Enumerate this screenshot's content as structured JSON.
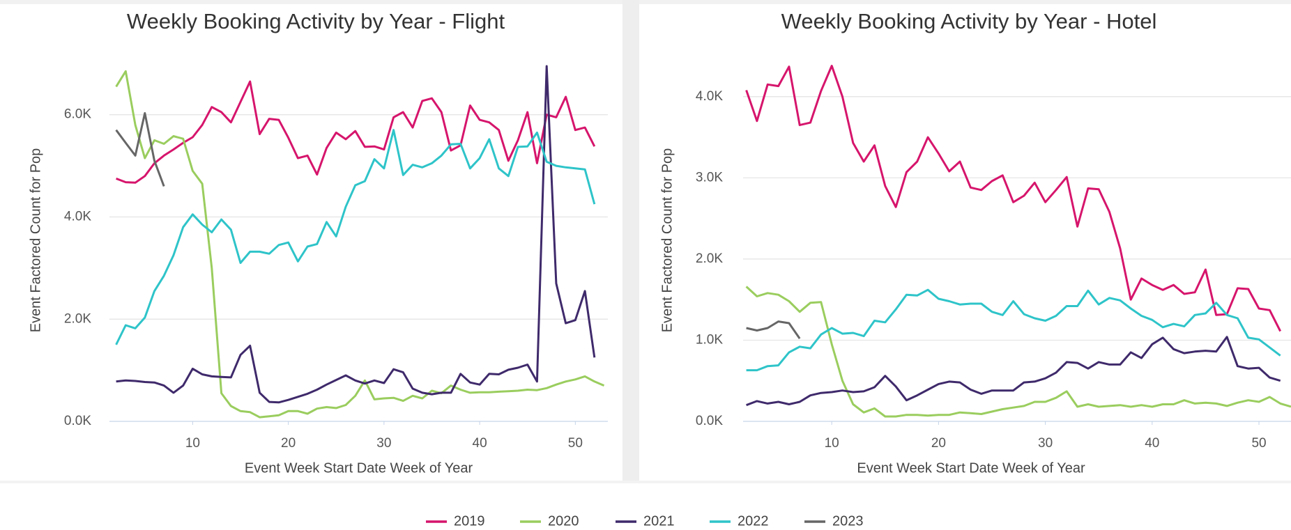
{
  "chart_data": [
    {
      "type": "line",
      "title": "Weekly Booking Activity by Year - Flight",
      "xlabel": "Event Week Start Date Week of Year",
      "ylabel": "Event Factored Count for Pop",
      "x": [
        2,
        3,
        4,
        5,
        6,
        7,
        8,
        9,
        10,
        11,
        12,
        13,
        14,
        15,
        16,
        17,
        18,
        19,
        20,
        21,
        22,
        23,
        24,
        25,
        26,
        27,
        28,
        29,
        30,
        31,
        32,
        33,
        34,
        35,
        36,
        37,
        38,
        39,
        40,
        41,
        42,
        43,
        44,
        45,
        46,
        47,
        48,
        49,
        50,
        51,
        52,
        53
      ],
      "xlim": [
        1.3,
        53.4
      ],
      "xticks": [
        10,
        20,
        30,
        40,
        50
      ],
      "ylim": [
        0,
        7100
      ],
      "yticks": [
        {
          "value": 0,
          "label": "0.0K"
        },
        {
          "value": 2000,
          "label": "2.0K"
        },
        {
          "value": 4000,
          "label": "4.0K"
        },
        {
          "value": 6000,
          "label": "6.0K"
        }
      ],
      "grid": true,
      "series": [
        {
          "name": "2019",
          "color": "#d6156c",
          "values": [
            4750,
            4680,
            4670,
            4800,
            5050,
            5200,
            5320,
            5450,
            5560,
            5800,
            6150,
            6050,
            5850,
            6250,
            6650,
            5620,
            5920,
            5900,
            5550,
            5150,
            5200,
            4830,
            5350,
            5650,
            5520,
            5680,
            5370,
            5380,
            5320,
            5950,
            6050,
            5750,
            6270,
            6320,
            6050,
            5300,
            5400,
            6180,
            5900,
            5850,
            5700,
            5100,
            5500,
            6050,
            5050,
            6000,
            5950,
            6350,
            5700,
            5750,
            5380,
            null
          ]
        },
        {
          "name": "2020",
          "color": "#9acd5e",
          "values": [
            6550,
            6850,
            5800,
            5150,
            5500,
            5430,
            5580,
            5530,
            4900,
            4650,
            3000,
            550,
            300,
            200,
            180,
            80,
            100,
            120,
            200,
            200,
            150,
            250,
            280,
            260,
            320,
            500,
            800,
            430,
            450,
            460,
            400,
            500,
            450,
            600,
            550,
            700,
            620,
            560,
            570,
            570,
            580,
            590,
            600,
            620,
            610,
            650,
            720,
            780,
            820,
            880,
            780,
            700
          ]
        },
        {
          "name": "2021",
          "color": "#3f2a6b",
          "values": [
            780,
            800,
            790,
            770,
            760,
            700,
            560,
            700,
            1030,
            920,
            880,
            870,
            860,
            1300,
            1480,
            560,
            380,
            370,
            420,
            480,
            540,
            620,
            720,
            810,
            900,
            800,
            740,
            800,
            750,
            1020,
            960,
            640,
            560,
            530,
            560,
            560,
            930,
            760,
            720,
            930,
            920,
            1010,
            1050,
            1110,
            780,
            6950,
            2700,
            1920,
            1980,
            2550,
            1250,
            null
          ]
        },
        {
          "name": "2022",
          "color": "#2ec4c9",
          "values": [
            1500,
            1880,
            1820,
            2030,
            2550,
            2850,
            3250,
            3800,
            4050,
            3850,
            3700,
            3950,
            3750,
            3100,
            3320,
            3320,
            3280,
            3450,
            3500,
            3130,
            3420,
            3470,
            3900,
            3620,
            4200,
            4620,
            4700,
            5130,
            4950,
            5700,
            4820,
            5020,
            4970,
            5050,
            5200,
            5420,
            5430,
            4950,
            5150,
            5520,
            4950,
            4800,
            5370,
            5380,
            5650,
            5080,
            5000,
            4970,
            4950,
            4930,
            4250,
            null
          ]
        },
        {
          "name": "2023",
          "color": "#666666",
          "values": [
            5700,
            5450,
            5200,
            6030,
            5100,
            4600,
            null,
            null,
            null,
            null,
            null,
            null,
            null,
            null,
            null,
            null,
            null,
            null,
            null,
            null,
            null,
            null,
            null,
            null,
            null,
            null,
            null,
            null,
            null,
            null,
            null,
            null,
            null,
            null,
            null,
            null,
            null,
            null,
            null,
            null,
            null,
            null,
            null,
            null,
            null,
            null,
            null,
            null,
            null,
            null,
            null,
            null
          ]
        }
      ]
    },
    {
      "type": "line",
      "title": "Weekly Booking Activity by Year - Hotel",
      "xlabel": "Event Week Start Date Week of Year",
      "ylabel": "Event Factored Count for Pop",
      "x": [
        2,
        3,
        4,
        5,
        6,
        7,
        8,
        9,
        10,
        11,
        12,
        13,
        14,
        15,
        16,
        17,
        18,
        19,
        20,
        21,
        22,
        23,
        24,
        25,
        26,
        27,
        28,
        29,
        30,
        31,
        32,
        33,
        34,
        35,
        36,
        37,
        38,
        39,
        40,
        41,
        42,
        43,
        44,
        45,
        46,
        47,
        48,
        49,
        50,
        51,
        52,
        53
      ],
      "xlim": [
        1.7,
        53
      ],
      "xticks": [
        10,
        20,
        30,
        40,
        50
      ],
      "ylim": [
        0,
        4470
      ],
      "yticks": [
        {
          "value": 0,
          "label": "0.0K"
        },
        {
          "value": 1000,
          "label": "1.0K"
        },
        {
          "value": 2000,
          "label": "2.0K"
        },
        {
          "value": 3000,
          "label": "3.0K"
        },
        {
          "value": 4000,
          "label": "4.0K"
        }
      ],
      "grid": true,
      "series": [
        {
          "name": "2019",
          "color": "#d6156c",
          "values": [
            4080,
            3700,
            4150,
            4130,
            4370,
            3650,
            3680,
            4070,
            4380,
            4000,
            3430,
            3200,
            3400,
            2900,
            2640,
            3070,
            3200,
            3500,
            3300,
            3080,
            3200,
            2880,
            2850,
            2960,
            3030,
            2700,
            2780,
            2940,
            2700,
            2850,
            3010,
            2400,
            2870,
            2860,
            2580,
            2130,
            1500,
            1760,
            1680,
            1620,
            1680,
            1570,
            1590,
            1870,
            1310,
            1320,
            1640,
            1630,
            1390,
            1370,
            1110,
            null
          ]
        },
        {
          "name": "2020",
          "color": "#9acd5e",
          "values": [
            1660,
            1540,
            1580,
            1560,
            1480,
            1350,
            1460,
            1470,
            950,
            500,
            210,
            110,
            160,
            60,
            60,
            80,
            80,
            70,
            80,
            80,
            110,
            100,
            90,
            120,
            150,
            170,
            190,
            240,
            240,
            290,
            370,
            180,
            210,
            180,
            190,
            200,
            180,
            200,
            180,
            210,
            210,
            260,
            220,
            230,
            220,
            190,
            230,
            260,
            240,
            300,
            220,
            180
          ]
        },
        {
          "name": "2021",
          "color": "#3f2a6b",
          "values": [
            200,
            250,
            220,
            240,
            210,
            240,
            320,
            350,
            360,
            380,
            360,
            370,
            420,
            560,
            430,
            260,
            320,
            390,
            460,
            490,
            480,
            390,
            340,
            380,
            380,
            380,
            480,
            490,
            530,
            600,
            730,
            720,
            650,
            730,
            700,
            700,
            850,
            780,
            950,
            1030,
            890,
            840,
            860,
            870,
            860,
            1040,
            680,
            650,
            660,
            540,
            500,
            null
          ]
        },
        {
          "name": "2022",
          "color": "#2ec4c9",
          "values": [
            630,
            630,
            680,
            690,
            850,
            920,
            900,
            1070,
            1150,
            1080,
            1090,
            1050,
            1240,
            1220,
            1380,
            1560,
            1550,
            1620,
            1510,
            1480,
            1440,
            1450,
            1450,
            1350,
            1310,
            1480,
            1320,
            1270,
            1240,
            1300,
            1420,
            1420,
            1610,
            1440,
            1520,
            1490,
            1390,
            1300,
            1250,
            1160,
            1200,
            1170,
            1310,
            1330,
            1460,
            1310,
            1270,
            1030,
            1010,
            910,
            810,
            null
          ]
        },
        {
          "name": "2023",
          "color": "#666666",
          "values": [
            1150,
            1120,
            1150,
            1230,
            1210,
            1020,
            null,
            null,
            null,
            null,
            null,
            null,
            null,
            null,
            null,
            null,
            null,
            null,
            null,
            null,
            null,
            null,
            null,
            null,
            null,
            null,
            null,
            null,
            null,
            null,
            null,
            null,
            null,
            null,
            null,
            null,
            null,
            null,
            null,
            null,
            null,
            null,
            null,
            null,
            null,
            null,
            null,
            null,
            null,
            null,
            null,
            null
          ]
        }
      ]
    }
  ]
}
